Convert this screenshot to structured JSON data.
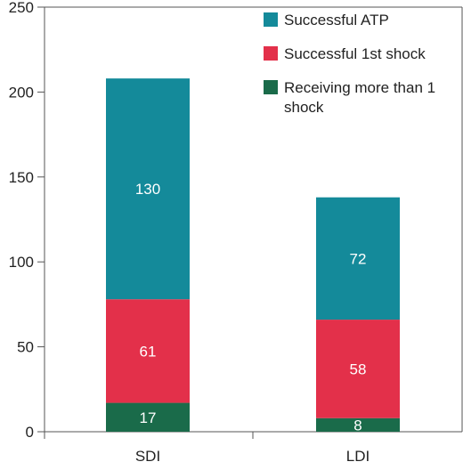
{
  "chart_data": {
    "type": "bar",
    "stacked": true,
    "categories": [
      "SDI",
      "LDI"
    ],
    "series": [
      {
        "name": "Receiving more than 1 shock",
        "values": [
          17,
          8
        ],
        "color": "#1a6b4a"
      },
      {
        "name": "Successful 1st  shock",
        "values": [
          61,
          58
        ],
        "color": "#e3304a"
      },
      {
        "name": "Successful ATP",
        "values": [
          130,
          72
        ],
        "color": "#148a9a"
      }
    ],
    "legend_order": [
      2,
      1,
      0
    ],
    "legend_labels": [
      [
        "Successful ATP"
      ],
      [
        "Successful 1st  shock"
      ],
      [
        "Receiving more than 1",
        "shock"
      ]
    ],
    "yticks": [
      0,
      50,
      100,
      150,
      200,
      250
    ],
    "ylim": [
      0,
      250
    ],
    "xlabel": "",
    "ylabel": "",
    "title": "",
    "grid": false,
    "legend_position": "top-right"
  }
}
